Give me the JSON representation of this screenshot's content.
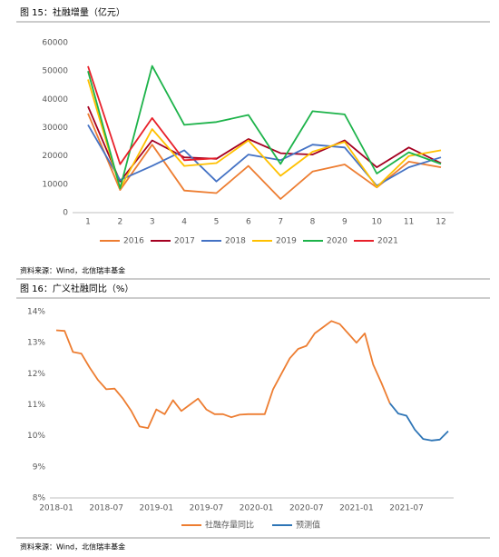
{
  "chart_data": [
    {
      "type": "line",
      "title": "图 15：社融增量（亿元）",
      "source": "资料来源：Wind，北信瑞丰基金",
      "categories": [
        "1",
        "2",
        "3",
        "4",
        "5",
        "6",
        "7",
        "8",
        "9",
        "10",
        "11",
        "12"
      ],
      "ylim": [
        0,
        60000
      ],
      "yticks": [
        0,
        10000,
        20000,
        30000,
        40000,
        50000,
        60000
      ],
      "grid": false,
      "legend": "bottom",
      "series": [
        {
          "name": "2016",
          "color": "#ed7d31",
          "values": [
            35000,
            8000,
            24000,
            7800,
            6900,
            16500,
            4800,
            14500,
            17000,
            8900,
            18000,
            16000
          ]
        },
        {
          "name": "2017",
          "color": "#a50021",
          "values": [
            37500,
            11000,
            25500,
            19500,
            19000,
            26000,
            21000,
            20500,
            25500,
            16000,
            23000,
            17500
          ]
        },
        {
          "name": "2018",
          "color": "#4472c4",
          "values": [
            31000,
            11500,
            16500,
            22000,
            11000,
            20500,
            18500,
            24000,
            23000,
            9500,
            16000,
            19500
          ]
        },
        {
          "name": "2019",
          "color": "#ffc000",
          "values": [
            47000,
            8500,
            29500,
            16500,
            17500,
            25500,
            13000,
            21500,
            25000,
            9000,
            20000,
            22000
          ]
        },
        {
          "name": "2020",
          "color": "#1db34a",
          "values": [
            50000,
            8600,
            51800,
            31000,
            32000,
            34500,
            17200,
            35800,
            34700,
            13800,
            21300,
            17200
          ]
        },
        {
          "name": "2021",
          "color": "#e8202a",
          "values": [
            51700,
            17100,
            33400,
            18500,
            19200,
            null,
            null,
            null,
            null,
            null,
            null,
            null
          ]
        }
      ]
    },
    {
      "type": "line",
      "title": "图 16：广义社融同比（%）",
      "source": "资料来源：Wind，北信瑞丰基金",
      "categories": [
        "2018-01",
        null,
        null,
        null,
        null,
        null,
        "2018-07",
        null,
        null,
        null,
        null,
        null,
        "2019-01",
        null,
        null,
        null,
        null,
        null,
        "2019-07",
        null,
        null,
        null,
        null,
        null,
        "2020-01",
        null,
        null,
        null,
        null,
        null,
        "2020-07",
        null,
        null,
        null,
        null,
        null,
        "2021-01",
        null,
        null,
        null,
        null,
        null,
        "2021-07",
        null,
        null,
        null,
        null,
        null
      ],
      "ylim": [
        8,
        14
      ],
      "yticks": [
        {
          "value": 8,
          "label": "8%"
        },
        {
          "value": 9,
          "label": "9%"
        },
        {
          "value": 10,
          "label": "10%"
        },
        {
          "value": 11,
          "label": "11%"
        },
        {
          "value": 12,
          "label": "12%"
        },
        {
          "value": 13,
          "label": "13%"
        },
        {
          "value": 14,
          "label": "14%"
        }
      ],
      "grid": false,
      "legend": "bottom",
      "series": [
        {
          "name": "社融存量同比",
          "color": "#ed7d31",
          "values": [
            13.4,
            13.38,
            12.7,
            12.65,
            12.2,
            11.8,
            11.5,
            11.52,
            11.2,
            10.8,
            10.3,
            10.25,
            10.85,
            10.7,
            11.15,
            10.8,
            11.0,
            11.2,
            10.85,
            10.7,
            10.7,
            10.6,
            10.68,
            10.7,
            10.7,
            10.7,
            11.5,
            12.0,
            12.5,
            12.8,
            12.9,
            13.3,
            13.5,
            13.7,
            13.6,
            13.3,
            13.0,
            13.3,
            12.3,
            11.7,
            11.05,
            null,
            null,
            null,
            null,
            null,
            null,
            null
          ]
        },
        {
          "name": "预测值",
          "color": "#2e75b6",
          "values": [
            null,
            null,
            null,
            null,
            null,
            null,
            null,
            null,
            null,
            null,
            null,
            null,
            null,
            null,
            null,
            null,
            null,
            null,
            null,
            null,
            null,
            null,
            null,
            null,
            null,
            null,
            null,
            null,
            null,
            null,
            null,
            null,
            null,
            null,
            null,
            null,
            null,
            null,
            null,
            null,
            11.05,
            10.72,
            10.65,
            10.2,
            9.9,
            9.85,
            9.88,
            10.15
          ]
        }
      ]
    }
  ]
}
